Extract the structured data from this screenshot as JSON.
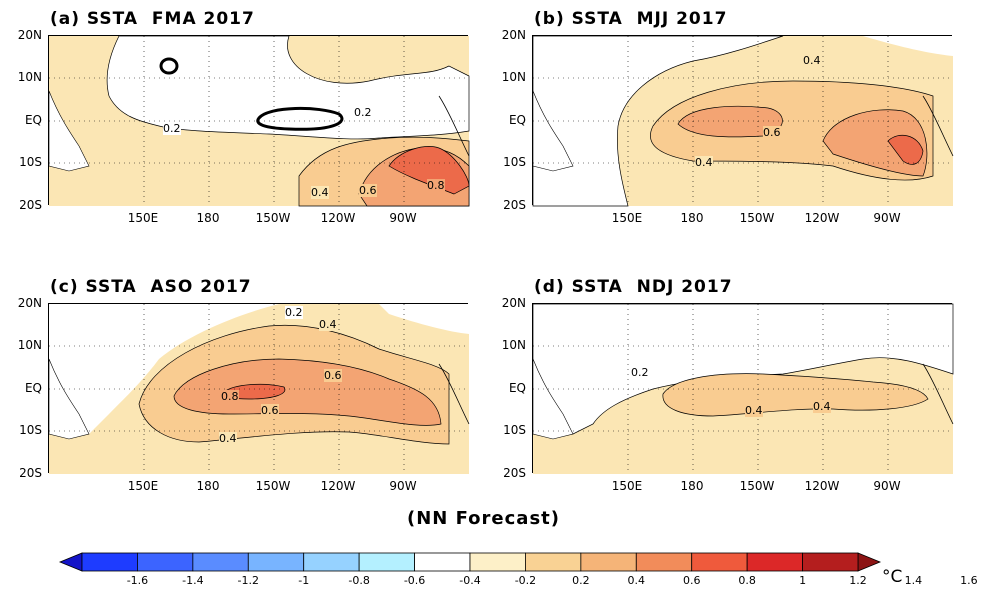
{
  "panels": [
    {
      "title": "(a) SSTA  FMA 2017"
    },
    {
      "title": "(b) SSTA  MJJ 2017"
    },
    {
      "title": "(c) SSTA  ASO 2017"
    },
    {
      "title": "(d) SSTA  NDJ 2017"
    }
  ],
  "axes": {
    "y_ticks": [
      "20N",
      "10N",
      "EQ",
      "10S",
      "20S"
    ],
    "x_ticks": [
      "150E",
      "180",
      "150W",
      "120W",
      "90W"
    ]
  },
  "contour_labels": {
    "a": [
      "0.2",
      "0.2",
      "0.4",
      "0.6",
      "0.8"
    ],
    "b": [
      "0.4",
      "0.6",
      "0.4"
    ],
    "c": [
      "0.2",
      "0.4",
      "0.6",
      "0.8",
      "0.6",
      "0.4"
    ],
    "d": [
      "0.2",
      "0.4",
      "0.4"
    ]
  },
  "caption": "(NN Forecast)",
  "colorbar": {
    "labels": [
      "-1.6",
      "-1.4",
      "-1.2",
      "-1",
      "-0.8",
      "-0.6",
      "-0.4",
      "-0.2",
      "0.2",
      "0.4",
      "0.6",
      "0.8",
      "1",
      "1.2",
      "1.4",
      "1.6"
    ],
    "colors": [
      "#1e3cff",
      "#3c64ff",
      "#5a8cff",
      "#78b4ff",
      "#96d2ff",
      "#b4f0ff",
      "#ffffff",
      "#fdf0c8",
      "#f9d294",
      "#f5b478",
      "#f28c5a",
      "#ef5a3c",
      "#dc2828",
      "#b41e1e"
    ],
    "unit": "°C"
  },
  "colors": {
    "level_02": "#fbe6b4",
    "level_04": "#f9cc91",
    "level_06": "#f3a473",
    "level_08": "#ec6a4a",
    "land_line": "#000000"
  }
}
